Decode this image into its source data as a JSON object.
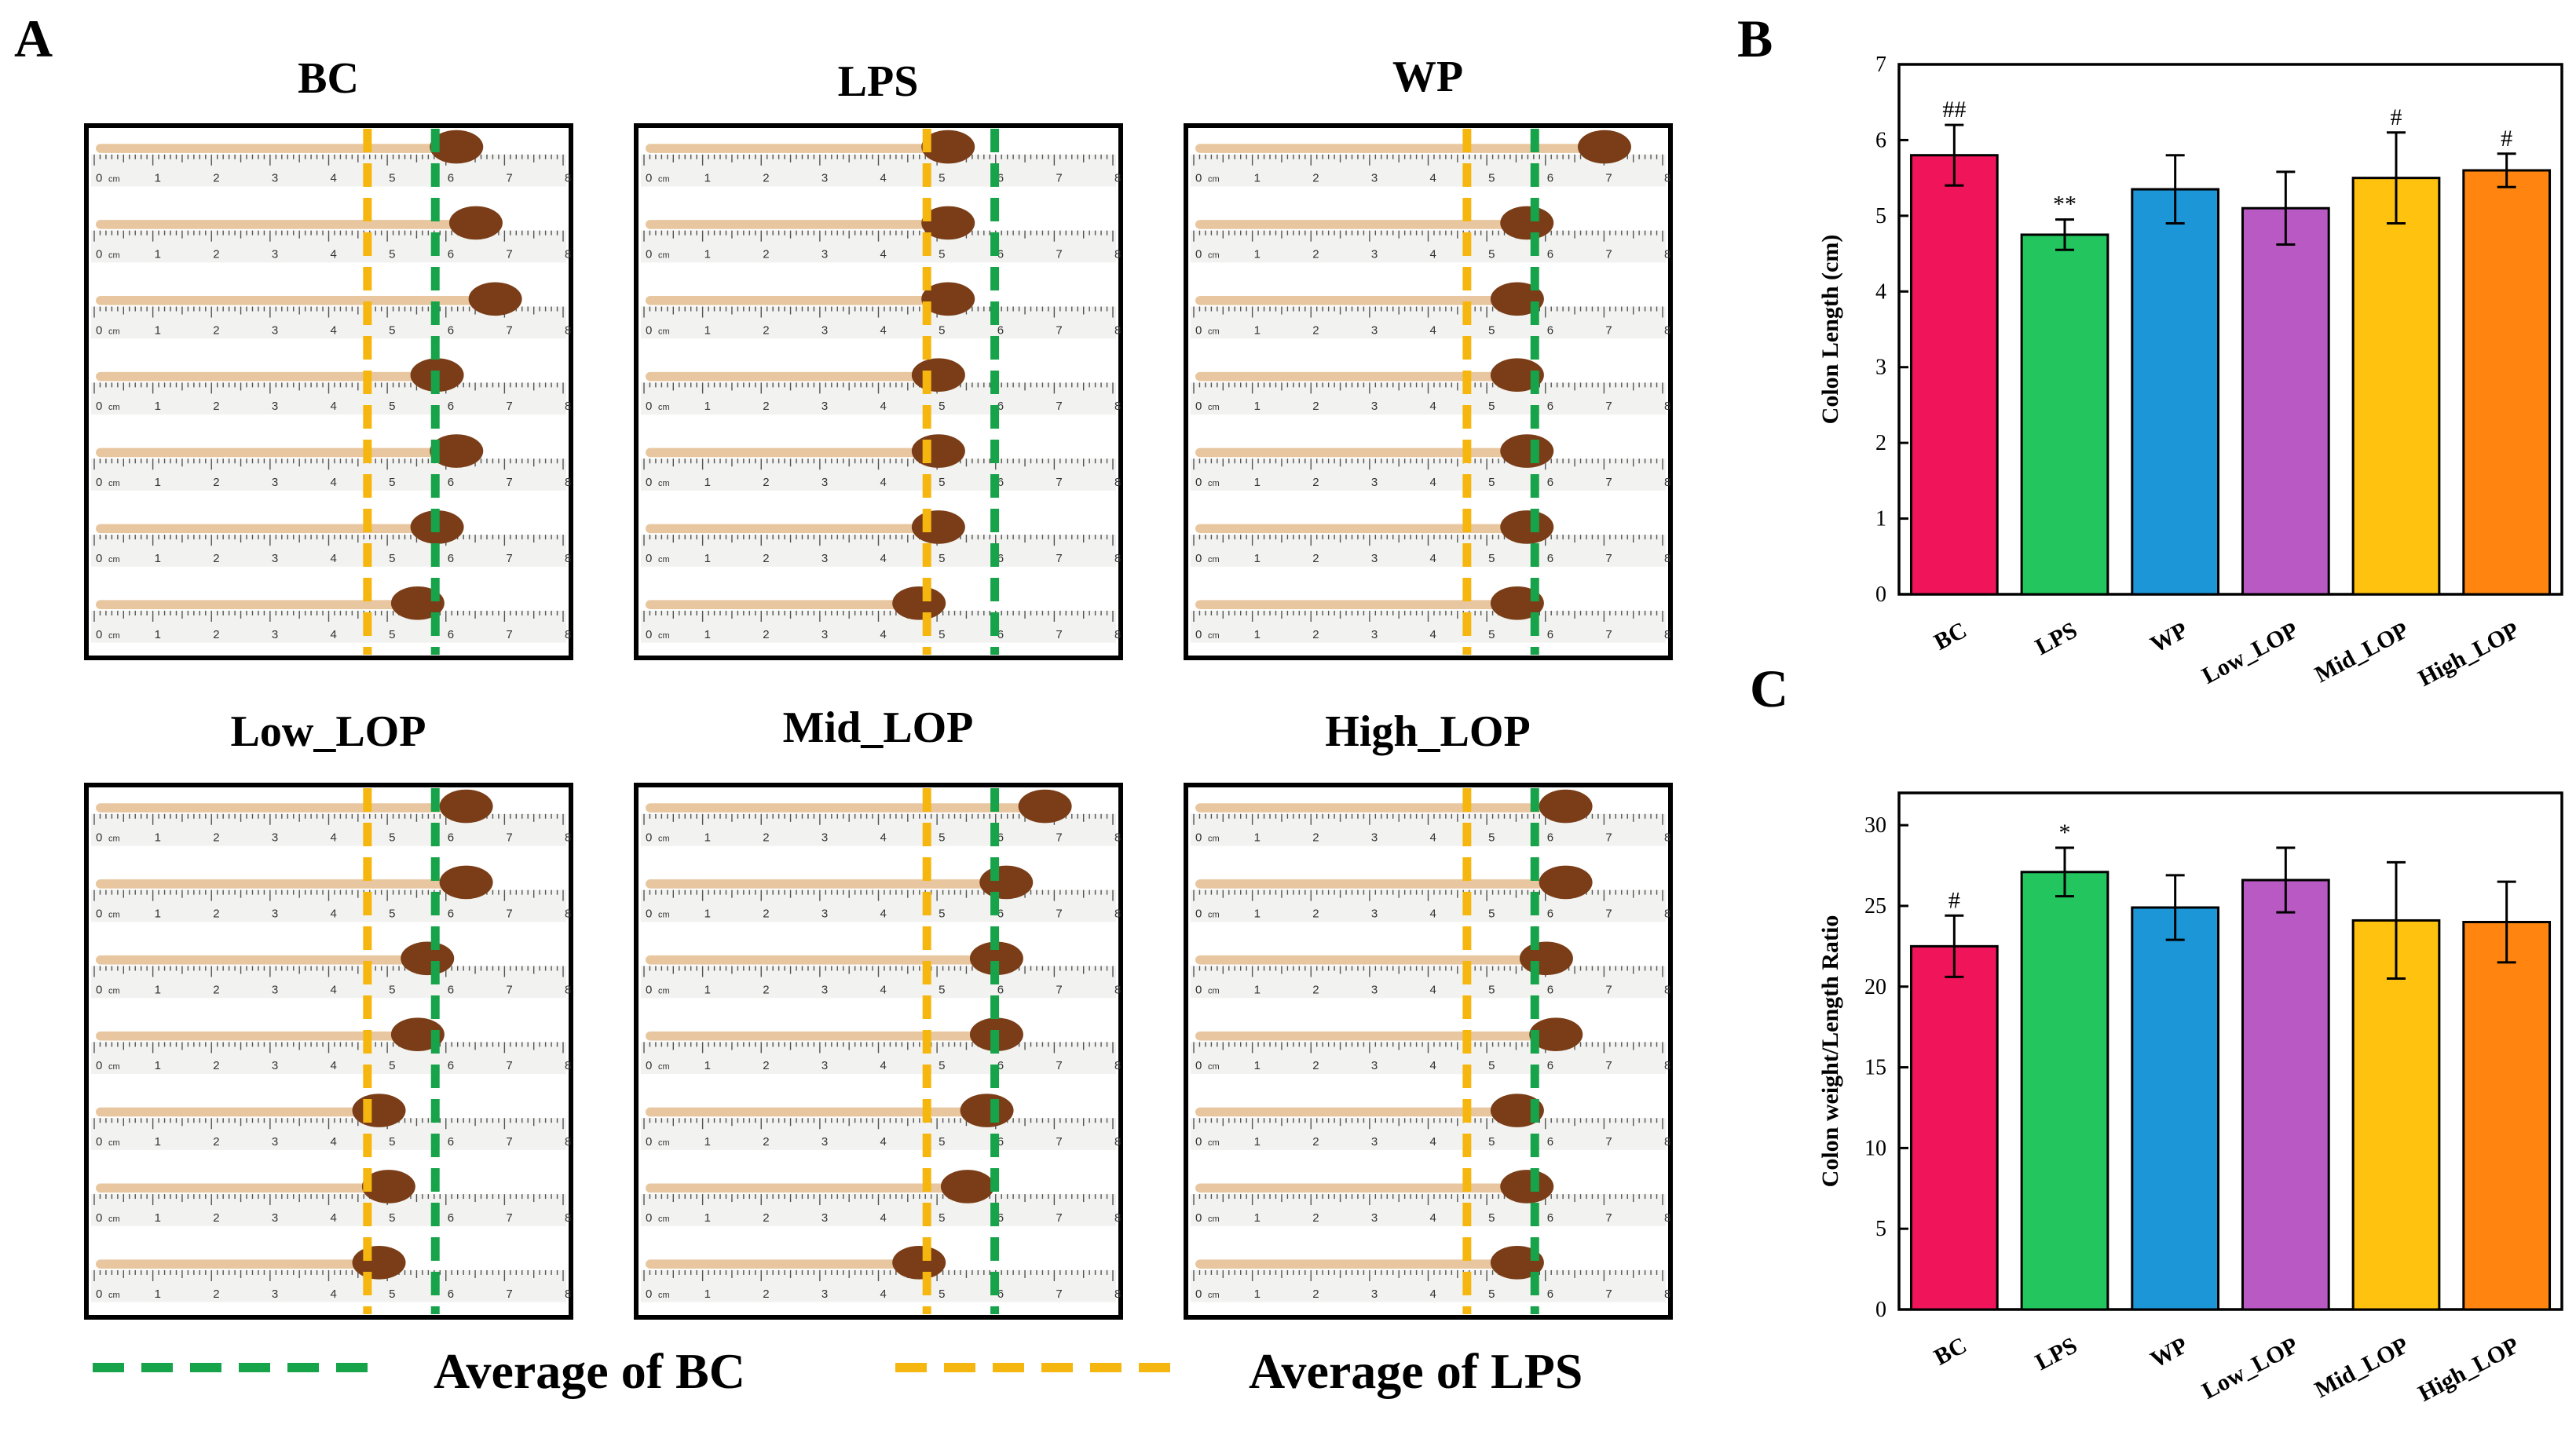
{
  "panel_letters": {
    "a": "A",
    "b": "B",
    "c": "C"
  },
  "photo_panels": [
    {
      "title": "BC"
    },
    {
      "title": "LPS"
    },
    {
      "title": "WP"
    },
    {
      "title": "Low_LOP"
    },
    {
      "title": "Mid_LOP"
    },
    {
      "title": "High_LOP"
    }
  ],
  "ruler_label": "cm",
  "ruler_numbers": [
    "0",
    "1",
    "2",
    "3",
    "4",
    "5",
    "6",
    "7",
    "8"
  ],
  "legend": [
    {
      "label": "Average of BC",
      "color": "#16a34a"
    },
    {
      "label": "Average of LPS",
      "color": "#f5b70f"
    }
  ],
  "colors": {
    "BC": "#f0145a",
    "LPS": "#22c55e",
    "WP": "#1d96d8",
    "Low_LOP": "#b95ac4",
    "Mid_LOP": "#ffc20e",
    "High_LOP": "#ff8510",
    "ruler": "#f2f2f0",
    "colon": "#e8c7a0",
    "cecum": "#7a3d17"
  },
  "chart_data": [
    {
      "type": "bar",
      "panel": "B",
      "categories": [
        "BC",
        "LPS",
        "WP",
        "Low_LOP",
        "Mid_LOP",
        "High_LOP"
      ],
      "values": [
        5.8,
        4.75,
        5.35,
        5.1,
        5.5,
        5.6
      ],
      "errors": [
        0.4,
        0.2,
        0.45,
        0.48,
        0.6,
        0.22
      ],
      "annotations": [
        "##",
        "**",
        "",
        "",
        "#",
        "#"
      ],
      "ylabel": "Colon Length (cm)",
      "xlabel": "",
      "ylim": [
        0,
        7
      ],
      "yticks": [
        0,
        1,
        2,
        3,
        4,
        5,
        6,
        7
      ]
    },
    {
      "type": "bar",
      "panel": "C",
      "categories": [
        "BC",
        "LPS",
        "WP",
        "Low_LOP",
        "Mid_LOP",
        "High_LOP"
      ],
      "values": [
        22.5,
        27.1,
        24.9,
        26.6,
        24.1,
        24.0
      ],
      "errors": [
        1.9,
        1.5,
        2.0,
        2.0,
        3.6,
        2.5
      ],
      "annotations": [
        "#",
        "*",
        "",
        "",
        "",
        ""
      ],
      "ylabel": "Colon weight/Length Ratio",
      "xlabel": "",
      "ylim": [
        0,
        32
      ],
      "yticks": [
        0,
        5,
        10,
        15,
        20,
        25,
        30
      ]
    }
  ]
}
